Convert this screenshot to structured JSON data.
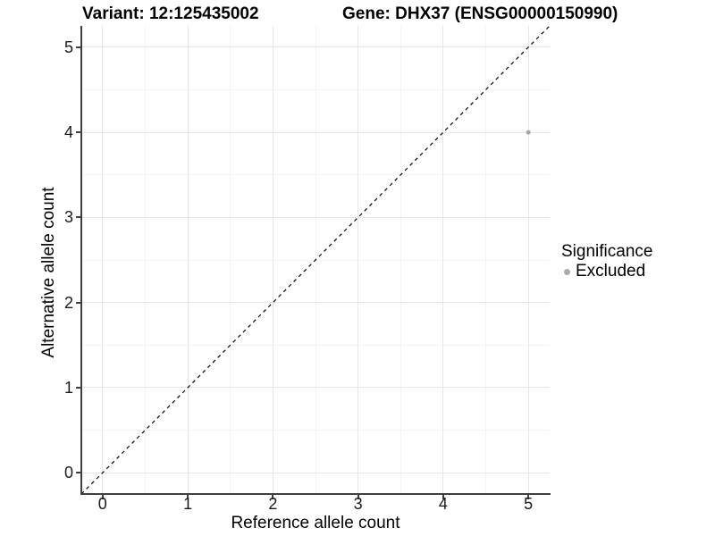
{
  "title": {
    "variant": "Variant: 12:125435002",
    "gene": "Gene: DHX37 (ENSG00000150990)"
  },
  "legend": {
    "title": "Significance",
    "items": [
      {
        "label": "Excluded",
        "color": "#ababab"
      }
    ]
  },
  "chart_data": {
    "type": "scatter",
    "title": "Variant: 12:125435002  |  Gene: DHX37 (ENSG00000150990)",
    "xlabel": "Reference allele count",
    "ylabel": "Alternative allele count",
    "xlim": [
      -0.25,
      5.25
    ],
    "ylim": [
      -0.25,
      5.25
    ],
    "x_ticks": [
      0,
      1,
      2,
      3,
      4,
      5
    ],
    "y_ticks": [
      0,
      1,
      2,
      3,
      4,
      5
    ],
    "grid": "major and minor gridlines on white background",
    "legend_position": "right",
    "series": [
      {
        "name": "Excluded",
        "color": "#a6a6a6",
        "marker": "circle",
        "points": [
          {
            "x": 5,
            "y": 4
          }
        ]
      }
    ],
    "reference_line": {
      "type": "identity y=x",
      "style": "dashed",
      "color": "#000000",
      "from": [
        -0.25,
        -0.25
      ],
      "to": [
        5.25,
        5.25
      ]
    }
  },
  "colors": {
    "background": "#ffffff",
    "grid_major": "#e7e7e7",
    "grid_minor": "#f4f4f4",
    "axis_line": "#3f3f3f",
    "point_gray": "#a6a6a6"
  }
}
